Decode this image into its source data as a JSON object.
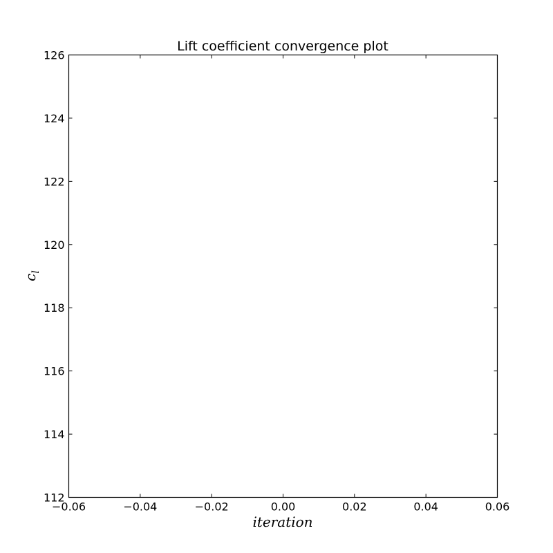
{
  "chart_data": {
    "type": "line",
    "title": "Lift coefficient convergence plot",
    "xlabel": "iteration",
    "ylabel": "c",
    "ylabel_subscript": "l",
    "xlim": [
      -0.06,
      0.06
    ],
    "ylim": [
      112,
      126
    ],
    "xticks": [
      -0.06,
      -0.04,
      -0.02,
      0.0,
      0.02,
      0.04,
      0.06
    ],
    "xtick_labels": [
      "−0.06",
      "−0.04",
      "−0.02",
      "0.00",
      "0.02",
      "0.04",
      "0.06"
    ],
    "yticks": [
      112,
      114,
      116,
      118,
      120,
      122,
      124,
      126
    ],
    "ytick_labels": [
      "112",
      "114",
      "116",
      "118",
      "120",
      "122",
      "124",
      "126"
    ],
    "series": [],
    "grid": false,
    "colors": {
      "axes": "#000000",
      "background": "#ffffff"
    }
  }
}
